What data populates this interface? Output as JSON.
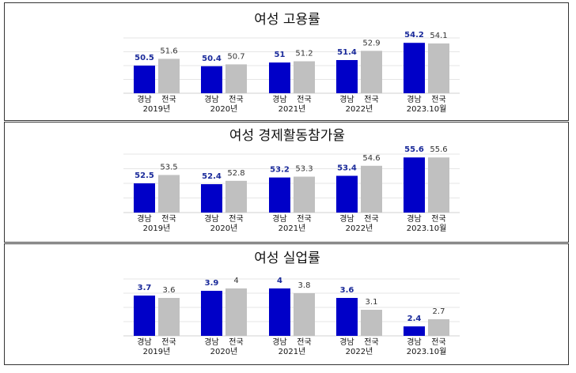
{
  "colors": {
    "gyeongnam": "#0000c8",
    "national": "#c0c0c0",
    "grid": "#e6e6e6"
  },
  "chart_data": [
    {
      "type": "bar",
      "title": "여성 고용률",
      "categories": [
        "2019년",
        "2020년",
        "2021년",
        "2022년",
        "2023.10월"
      ],
      "series": [
        {
          "name": "경남",
          "values": [
            50.5,
            50.4,
            51,
            51.4,
            54.2
          ],
          "labels": [
            "50.5",
            "50.4",
            "51",
            "51.4",
            "54.2"
          ]
        },
        {
          "name": "전국",
          "values": [
            51.6,
            50.7,
            51.2,
            52.9,
            54.1
          ],
          "labels": [
            "51.6",
            "50.7",
            "51.2",
            "52.9",
            "54.1"
          ]
        }
      ],
      "ylim": [
        46,
        55
      ]
    },
    {
      "type": "bar",
      "title": "여성 경제활동참가율",
      "categories": [
        "2019년",
        "2020년",
        "2021년",
        "2022년",
        "2023.10월"
      ],
      "series": [
        {
          "name": "경남",
          "values": [
            52.5,
            52.4,
            53.2,
            53.4,
            55.6
          ],
          "labels": [
            "52.5",
            "52.4",
            "53.2",
            "53.4",
            "55.6"
          ]
        },
        {
          "name": "전국",
          "values": [
            53.5,
            52.8,
            53.3,
            54.6,
            55.6
          ],
          "labels": [
            "53.5",
            "52.8",
            "53.3",
            "54.6",
            "55.6"
          ]
        }
      ],
      "ylim": [
        49,
        56
      ]
    },
    {
      "type": "bar",
      "title": "여성 실업률",
      "categories": [
        "2019년",
        "2020년",
        "2021년",
        "2022년",
        "2023.10월"
      ],
      "series": [
        {
          "name": "경남",
          "values": [
            3.7,
            3.9,
            4,
            3.6,
            2.4
          ],
          "labels": [
            "3.7",
            "3.9",
            "4",
            "3.6",
            "2.4"
          ]
        },
        {
          "name": "전국",
          "values": [
            3.6,
            4,
            3.8,
            3.1,
            2.7
          ],
          "labels": [
            "3.6",
            "4",
            "3.8",
            "3.1",
            "2.7"
          ]
        }
      ],
      "ylim": [
        2,
        4.4
      ]
    }
  ]
}
